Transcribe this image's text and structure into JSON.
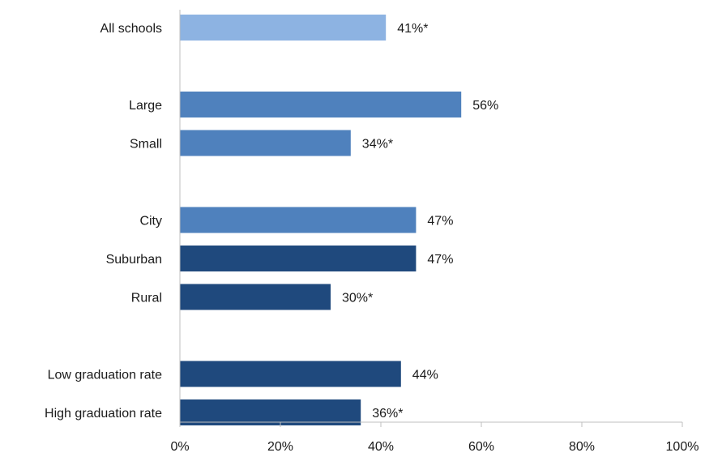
{
  "chart_data": {
    "type": "bar",
    "orientation": "horizontal",
    "title": "",
    "xlabel": "",
    "ylabel": "",
    "xlim": [
      0,
      100
    ],
    "grid": false,
    "x_ticks": [
      0,
      20,
      40,
      60,
      80,
      100
    ],
    "x_tick_labels": [
      "0%",
      "20%",
      "40%",
      "60%",
      "80%",
      "100%"
    ],
    "groups": [
      {
        "items": [
          {
            "category": "All schools",
            "value": 41,
            "label": "41%*",
            "color": "#8DB3E2"
          }
        ]
      },
      {
        "items": [
          {
            "category": "Large",
            "value": 56,
            "label": "56%",
            "color": "#4F81BD"
          },
          {
            "category": "Small",
            "value": 34,
            "label": "34%*",
            "color": "#4F81BD"
          }
        ]
      },
      {
        "items": [
          {
            "category": "City",
            "value": 47,
            "label": "47%",
            "color": "#4F81BD"
          },
          {
            "category": "Suburban",
            "value": 47,
            "label": "47%",
            "color": "#1F497D"
          },
          {
            "category": "Rural",
            "value": 30,
            "label": "30%*",
            "color": "#1F497D"
          }
        ]
      },
      {
        "items": [
          {
            "category": "Low graduation rate",
            "value": 44,
            "label": "44%",
            "color": "#1F497D"
          },
          {
            "category": "High graduation rate",
            "value": 36,
            "label": "36%*",
            "color": "#1F497D"
          }
        ]
      }
    ]
  }
}
